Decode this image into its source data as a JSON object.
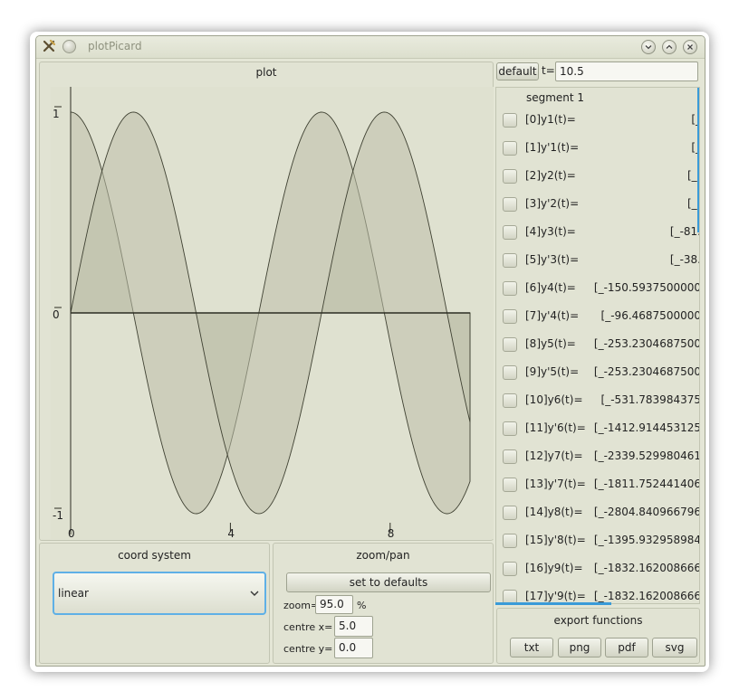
{
  "window": {
    "title": "plotPicard"
  },
  "plot": {
    "label": "plot",
    "y_ticks": [
      "1",
      "0",
      "-1"
    ],
    "x_ticks": [
      "0",
      "4",
      "8"
    ]
  },
  "chart_data": {
    "type": "area",
    "title": "",
    "xlabel": "",
    "ylabel": "",
    "xlim": [
      0,
      10.5
    ],
    "ylim": [
      -1,
      1
    ],
    "x_ticks": [
      0,
      4,
      8
    ],
    "y_ticks": [
      -1,
      0,
      1
    ],
    "grid": false,
    "series": [
      {
        "function": "cos",
        "x_range": [
          0,
          10.0
        ],
        "color": "#bdbfaa"
      },
      {
        "function": "sin",
        "x_range": [
          0,
          10.0
        ],
        "color": "#bdbfaa"
      }
    ],
    "fill_to_zero": true
  },
  "toolbar": {
    "default_label": "default",
    "t_label": "t=",
    "t_value": "10.5"
  },
  "list": {
    "header": "segment 1",
    "items": [
      {
        "label": "[0]y1(t)=",
        "value": "[_"
      },
      {
        "label": "[1]y'1(t)=",
        "value": "[_"
      },
      {
        "label": "[2]y2(t)=",
        "value": "[_-"
      },
      {
        "label": "[3]y'2(t)=",
        "value": "[_-"
      },
      {
        "label": "[4]y3(t)=",
        "value": "[_-81."
      },
      {
        "label": "[5]y'3(t)=",
        "value": "[_-38."
      },
      {
        "label": "[6]y4(t)=",
        "value": "[_-150.5937500000"
      },
      {
        "label": "[7]y'4(t)=",
        "value": "[_-96.4687500000"
      },
      {
        "label": "[8]y5(t)=",
        "value": "[_-253.2304687500"
      },
      {
        "label": "[9]y'5(t)=",
        "value": "[_-253.2304687500"
      },
      {
        "label": "[10]y6(t)=",
        "value": "[_-531.783984375"
      },
      {
        "label": "[11]y'6(t)=",
        "value": "[_-1412.914453125"
      },
      {
        "label": "[12]y7(t)=",
        "value": "[_-2339.529980461"
      },
      {
        "label": "[13]y'7(t)=",
        "value": "[_-1811.752441406"
      },
      {
        "label": "[14]y8(t)=",
        "value": "[_-2804.840966796"
      },
      {
        "label": "[15]y'8(t)=",
        "value": "[_-1395.932958984"
      },
      {
        "label": "[16]y9(t)=",
        "value": "[_-1832.162008666"
      },
      {
        "label": "[17]y'9(t)=",
        "value": "[_-1832.162008666"
      }
    ]
  },
  "coord": {
    "title": "coord system",
    "selected": "linear"
  },
  "zoompan": {
    "title": "zoom/pan",
    "defaults_label": "set to defaults",
    "zoom_label": "zoom=",
    "zoom_value": "95.0",
    "zoom_unit": "%",
    "centre_x_label": "centre x=",
    "centre_x_value": "5.0",
    "centre_y_label": "centre y=",
    "centre_y_value": "0.0"
  },
  "export": {
    "title": "export functions",
    "buttons": [
      "txt",
      "png",
      "pdf",
      "svg"
    ]
  },
  "colors": {
    "window_bg": "#e4e6d6",
    "plot_bg": "#dfe1d0",
    "accent": "#3a9bd8",
    "curve_fill": "#bdbfaa"
  }
}
